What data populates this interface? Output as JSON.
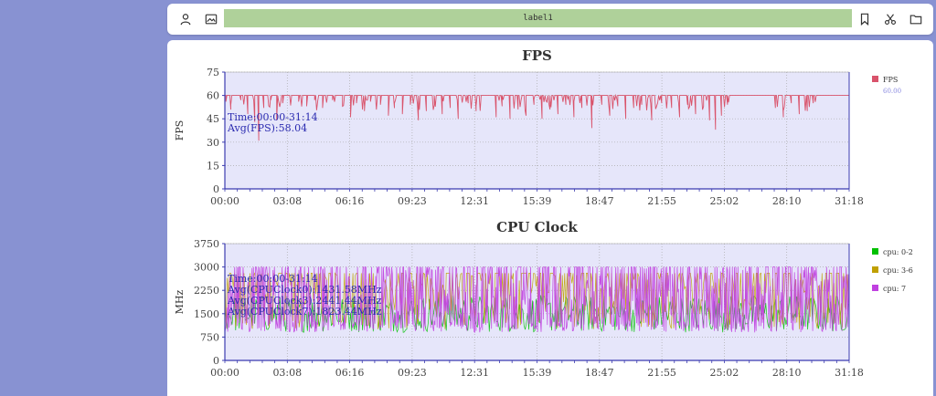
{
  "toolbar": {
    "label": "label1",
    "left_icons": [
      "user-icon",
      "image-icon"
    ],
    "right_icons": [
      "bookmark-icon",
      "scissors-icon",
      "folder-icon"
    ]
  },
  "theme": {
    "sidebar_bg": "#8892d2",
    "plot_bg": "#e6e6fa",
    "axis_color": "#3b3bb0",
    "label_bar_bg": "#afd19a"
  },
  "chart_data": [
    {
      "type": "line",
      "title": "FPS",
      "ylabel": "FPS",
      "xlabel": "",
      "ylim": [
        0,
        75
      ],
      "yticks": [
        0,
        15,
        30,
        45,
        60,
        75
      ],
      "xticks": [
        "00:00",
        "03:08",
        "06:16",
        "09:23",
        "12:31",
        "15:39",
        "18:47",
        "21:55",
        "25:02",
        "28:10",
        "31:18"
      ],
      "grid": true,
      "legend_position": "right",
      "annotations": [
        "Time:00:00-31:14",
        "Avg(FPS):58.04"
      ],
      "series": [
        {
          "name": "FPS",
          "legend_value": "60.00",
          "color": "#d9536b",
          "x_range_min": [
            0.0,
            31.3
          ],
          "baseline": 60,
          "dips": [
            [
              0.05,
              56
            ],
            [
              0.3,
              54
            ],
            [
              0.8,
              57
            ],
            [
              1.15,
              48
            ],
            [
              1.5,
              43
            ],
            [
              1.7,
              31
            ],
            [
              1.95,
              52
            ],
            [
              2.3,
              57
            ],
            [
              2.6,
              44
            ],
            [
              2.9,
              55
            ],
            [
              3.3,
              54
            ],
            [
              3.7,
              56
            ],
            [
              4.1,
              53
            ],
            [
              4.5,
              57
            ],
            [
              4.9,
              52
            ],
            [
              5.4,
              57
            ],
            [
              5.9,
              53
            ],
            [
              6.3,
              46
            ],
            [
              6.6,
              55
            ],
            [
              7.0,
              50
            ],
            [
              7.3,
              56
            ],
            [
              7.8,
              54
            ],
            [
              8.2,
              47
            ],
            [
              8.5,
              55
            ],
            [
              8.9,
              48
            ],
            [
              9.3,
              54
            ],
            [
              9.7,
              44
            ],
            [
              10.1,
              50
            ],
            [
              10.5,
              54
            ],
            [
              10.9,
              48
            ],
            [
              11.3,
              52
            ],
            [
              11.7,
              45
            ],
            [
              12.2,
              55
            ],
            [
              12.6,
              50
            ],
            [
              13.6,
              46
            ],
            [
              13.9,
              53
            ],
            [
              14.3,
              45
            ],
            [
              14.7,
              51
            ],
            [
              15.1,
              47
            ],
            [
              15.5,
              54
            ],
            [
              15.9,
              45
            ],
            [
              16.3,
              51
            ],
            [
              16.7,
              48
            ],
            [
              17.1,
              54
            ],
            [
              17.5,
              46
            ],
            [
              17.9,
              52
            ],
            [
              18.4,
              39
            ],
            [
              18.9,
              54
            ],
            [
              19.3,
              47
            ],
            [
              19.7,
              53
            ],
            [
              20.1,
              45
            ],
            [
              20.5,
              52
            ],
            [
              20.9,
              54
            ],
            [
              21.4,
              44
            ],
            [
              21.9,
              55
            ],
            [
              22.4,
              52
            ],
            [
              22.8,
              46
            ],
            [
              23.2,
              54
            ],
            [
              23.6,
              48
            ],
            [
              24.0,
              53
            ],
            [
              24.3,
              44
            ],
            [
              24.6,
              38
            ],
            [
              24.9,
              47
            ],
            [
              25.2,
              54
            ],
            [
              27.6,
              52
            ],
            [
              28.0,
              46
            ],
            [
              28.4,
              55
            ],
            [
              28.8,
              48
            ],
            [
              29.2,
              50
            ],
            [
              29.5,
              55
            ]
          ]
        }
      ]
    },
    {
      "type": "line",
      "title": "CPU Clock",
      "ylabel": "MHz",
      "xlabel": "",
      "ylim": [
        0,
        3750
      ],
      "yticks": [
        0,
        750,
        1500,
        2250,
        3000,
        3750
      ],
      "xticks": [
        "00:00",
        "03:08",
        "06:16",
        "09:23",
        "12:31",
        "15:39",
        "18:47",
        "21:55",
        "25:02",
        "28:10",
        "31:18"
      ],
      "grid": true,
      "legend_position": "right",
      "annotations": [
        "Time:00:00-31:14",
        "Avg(CPUClock0):1431.58MHz",
        "Avg(CPUClock3):2441.44MHz",
        "Avg(CPUClock7):1823.44MHz"
      ],
      "series": [
        {
          "name": "cpu: 0-2",
          "color": "#00c000",
          "range": [
            900,
            2100
          ],
          "mean": 1431.58
        },
        {
          "name": "cpu: 3-6",
          "color": "#c0a000",
          "range": [
            1000,
            2800
          ],
          "mean": 2441.44
        },
        {
          "name": "cpu: 7",
          "color": "#c040e0",
          "range": [
            900,
            3000
          ],
          "mean": 1823.44
        }
      ]
    }
  ]
}
